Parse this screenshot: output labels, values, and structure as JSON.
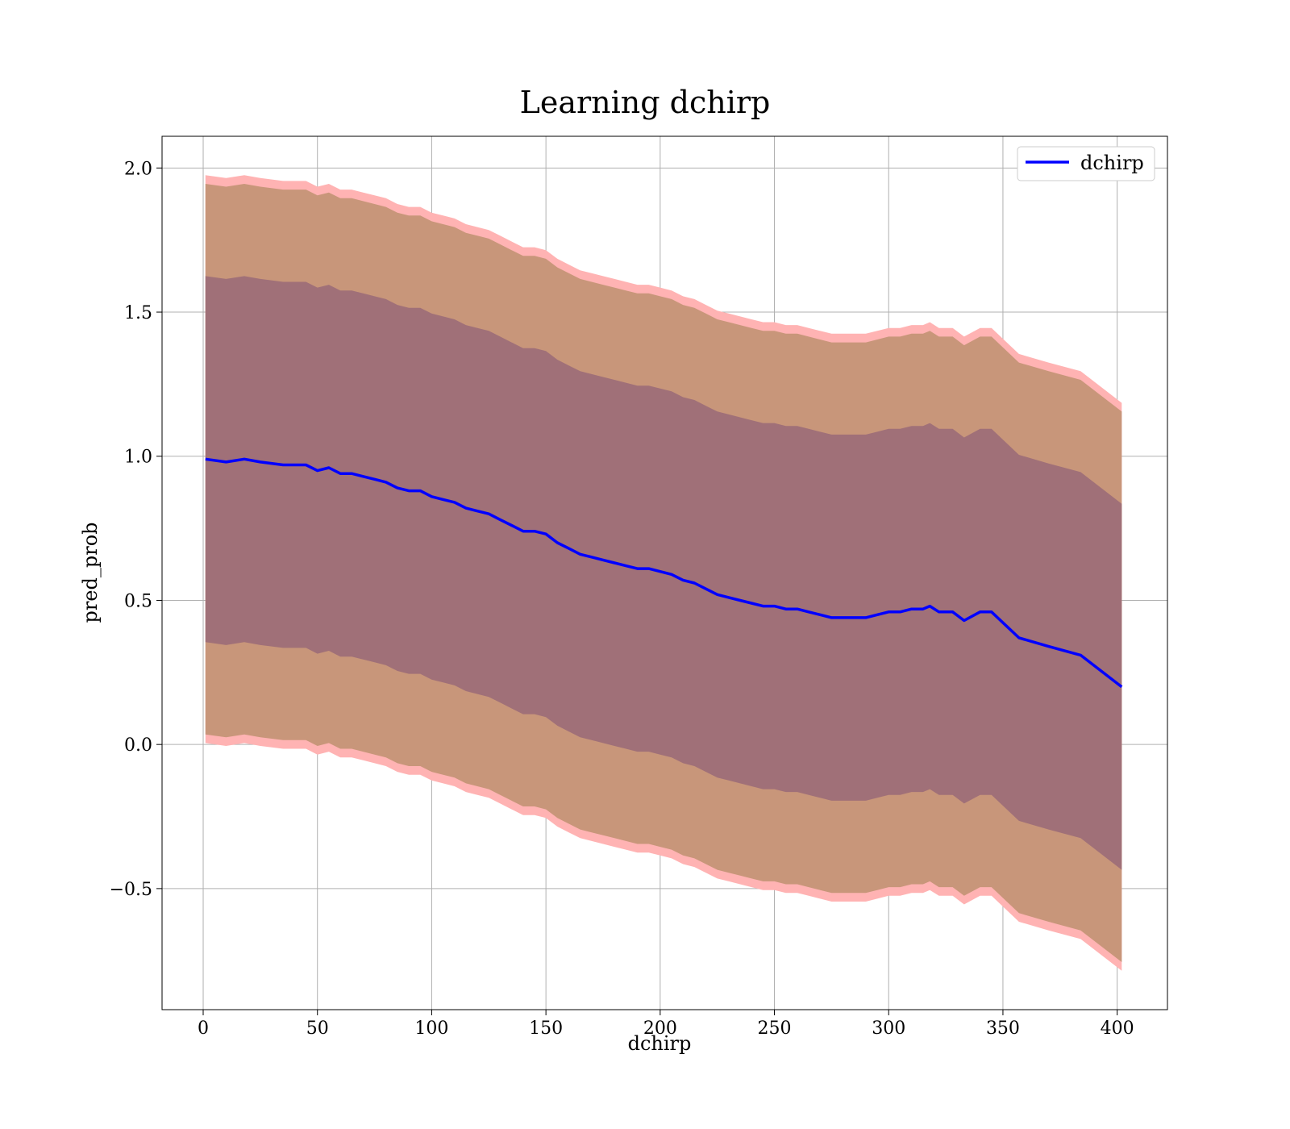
{
  "chart_data": {
    "type": "line",
    "title": "Learning dchirp",
    "xlabel": "dchirp",
    "ylabel": "pred_prob",
    "xlim": [
      -18,
      422
    ],
    "ylim": [
      -0.92,
      2.11
    ],
    "xticks": [
      0,
      50,
      100,
      150,
      200,
      250,
      300,
      350,
      400
    ],
    "yticks": [
      -0.5,
      0.0,
      0.5,
      1.0,
      1.5,
      2.0
    ],
    "ytick_labels": [
      "−0.5",
      "0.0",
      "0.5",
      "1.0",
      "1.5",
      "2.0"
    ],
    "grid": true,
    "legend": {
      "placement": "top-right",
      "entries": [
        "dchirp"
      ]
    },
    "colors": {
      "line": "#0000ff",
      "band_outer": "#ffb3b3",
      "band_middle": "#c8967a",
      "band_inner": "#a07078"
    },
    "series": [
      {
        "name": "dchirp",
        "x": [
          1,
          10,
          18,
          25,
          35,
          45,
          50,
          55,
          60,
          65,
          70,
          75,
          80,
          85,
          90,
          95,
          100,
          105,
          110,
          115,
          120,
          125,
          130,
          135,
          140,
          145,
          150,
          155,
          160,
          165,
          170,
          175,
          180,
          185,
          190,
          195,
          200,
          205,
          210,
          215,
          220,
          225,
          230,
          235,
          240,
          245,
          250,
          255,
          260,
          265,
          270,
          275,
          280,
          285,
          290,
          295,
          300,
          305,
          310,
          315,
          318,
          322,
          328,
          333,
          340,
          345,
          357,
          370,
          384,
          402
        ],
        "y": [
          0.99,
          0.98,
          0.99,
          0.98,
          0.97,
          0.97,
          0.95,
          0.96,
          0.94,
          0.94,
          0.93,
          0.92,
          0.91,
          0.89,
          0.88,
          0.88,
          0.86,
          0.85,
          0.84,
          0.82,
          0.81,
          0.8,
          0.78,
          0.76,
          0.74,
          0.74,
          0.73,
          0.7,
          0.68,
          0.66,
          0.65,
          0.64,
          0.63,
          0.62,
          0.61,
          0.61,
          0.6,
          0.59,
          0.57,
          0.56,
          0.54,
          0.52,
          0.51,
          0.5,
          0.49,
          0.48,
          0.48,
          0.47,
          0.47,
          0.46,
          0.45,
          0.44,
          0.44,
          0.44,
          0.44,
          0.45,
          0.46,
          0.46,
          0.47,
          0.47,
          0.48,
          0.46,
          0.46,
          0.43,
          0.46,
          0.46,
          0.37,
          0.34,
          0.31,
          0.2
        ],
        "band_inner_halfwidth": 0.635,
        "band_middle_halfwidth": 0.955,
        "band_outer_halfwidth": 0.985
      }
    ]
  }
}
